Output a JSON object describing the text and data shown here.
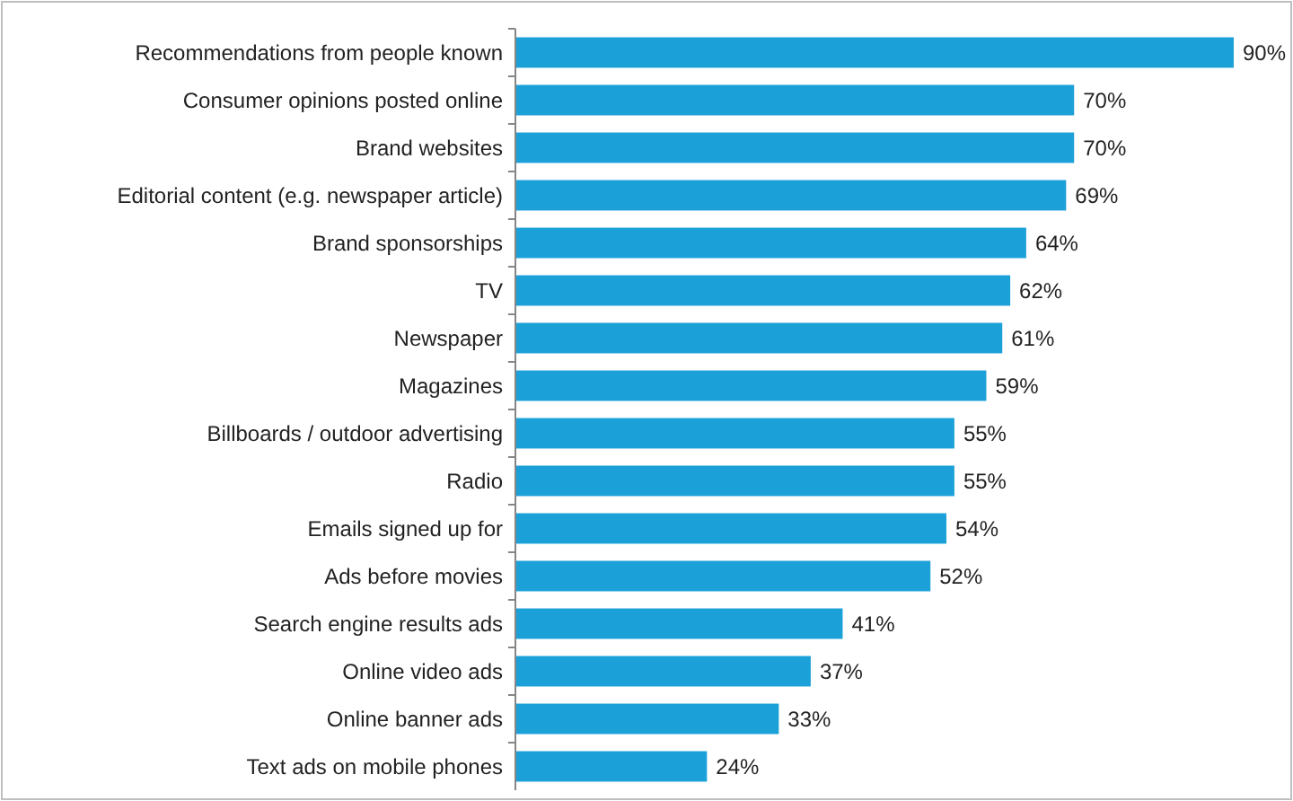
{
  "chart_data": {
    "type": "bar",
    "orientation": "horizontal",
    "categories": [
      "Recommendations from people known",
      "Consumer opinions posted online",
      "Brand websites",
      "Editorial content (e.g. newspaper article)",
      "Brand sponsorships",
      "TV",
      "Newspaper",
      "Magazines",
      "Billboards / outdoor advertising",
      "Radio",
      "Emails signed up for",
      "Ads before movies",
      "Search engine results ads",
      "Online video ads",
      "Online banner ads",
      "Text ads on mobile phones"
    ],
    "values": [
      90,
      70,
      70,
      69,
      64,
      62,
      61,
      59,
      55,
      55,
      54,
      52,
      41,
      37,
      33,
      24
    ],
    "value_labels": [
      "90%",
      "70%",
      "70%",
      "69%",
      "64%",
      "62%",
      "61%",
      "59%",
      "55%",
      "55%",
      "54%",
      "52%",
      "41%",
      "37%",
      "33%",
      "24%"
    ],
    "color": "#1ba1d8"
  }
}
